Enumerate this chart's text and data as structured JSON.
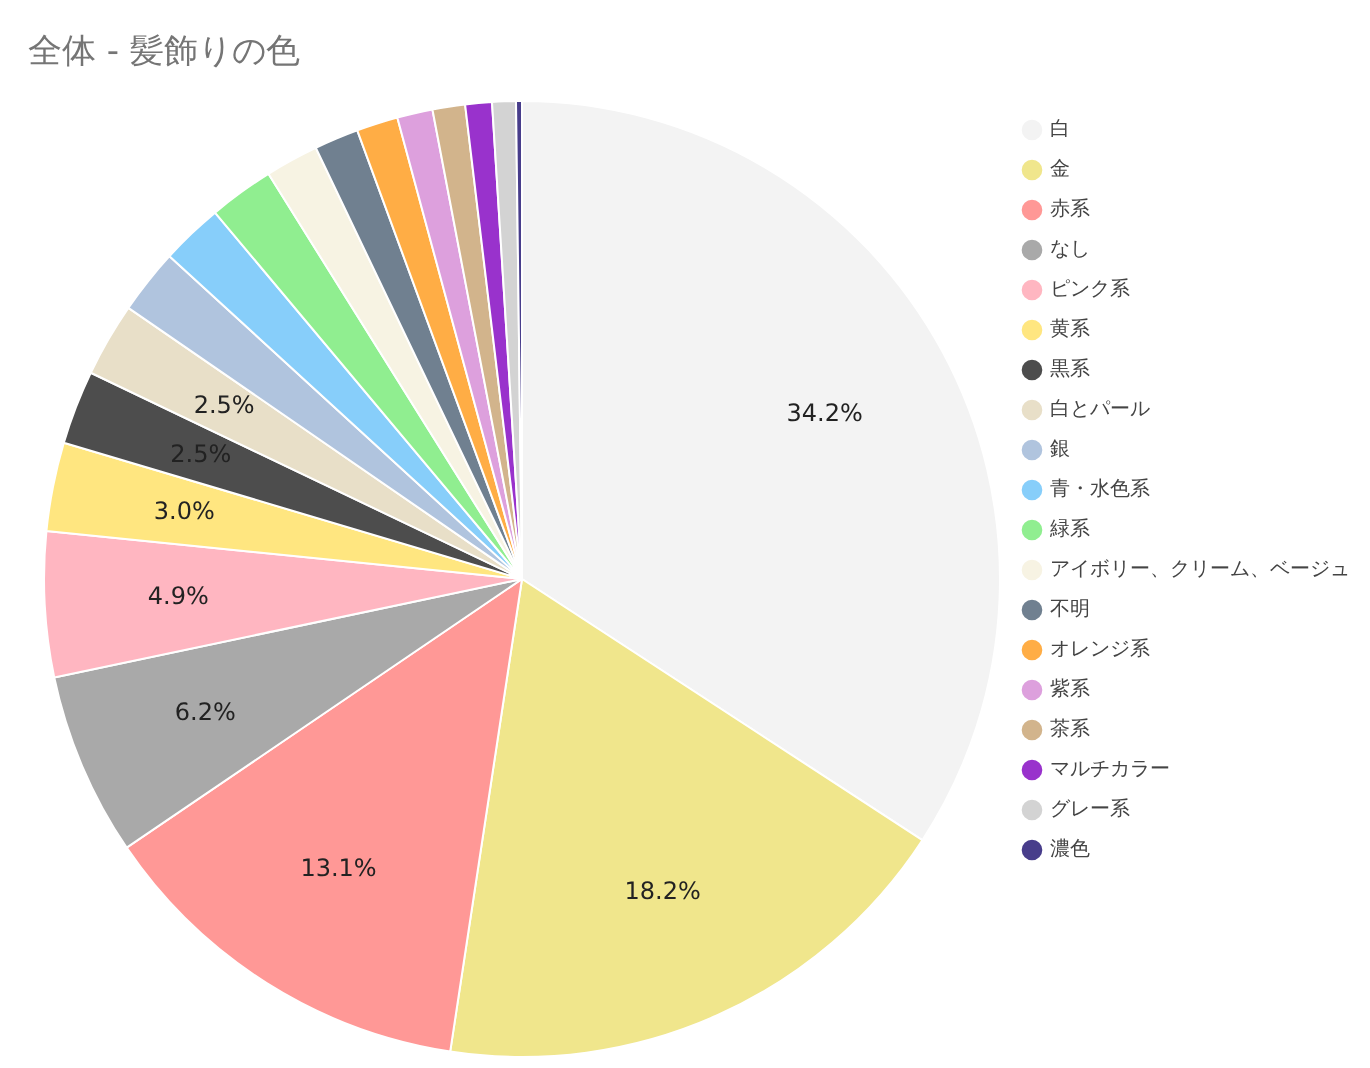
{
  "chart_data": {
    "type": "pie",
    "title": "全体 - 髪飾りの色",
    "categories": [
      "白",
      "金",
      "赤系",
      "なし",
      "ピンク系",
      "黄系",
      "黒系",
      "白とパール",
      "銀",
      "青・水色系",
      "緑系",
      "アイボリー、クリーム、ベージュ",
      "不明",
      "オレンジ系",
      "紫系",
      "茶系",
      "マルチカラー",
      "グレー系",
      "濃色"
    ],
    "values": [
      34.2,
      18.2,
      13.1,
      6.2,
      4.9,
      3.0,
      2.5,
      2.5,
      2.2,
      2.1,
      2.2,
      1.8,
      1.5,
      1.4,
      1.2,
      1.1,
      0.9,
      0.8,
      0.2
    ],
    "colors": [
      "#f3f3f3",
      "#f0e68c",
      "#ff9896",
      "#a9a9a9",
      "#ffb6c1",
      "#ffe680",
      "#4d4d4d",
      "#e8dfc8",
      "#b0c4de",
      "#87cefa",
      "#90ee90",
      "#f7f3e3",
      "#708090",
      "#ffad45",
      "#dda0dd",
      "#d2b48c",
      "#9932cc",
      "#d3d3d3",
      "#483d8b"
    ],
    "value_labels": [
      "34.2%",
      "18.2%",
      "13.1%",
      "6.2%",
      "4.9%",
      "3.0%",
      "2.5%",
      "2.5%",
      null,
      null,
      null,
      null,
      null,
      null,
      null,
      null,
      null,
      null,
      null
    ],
    "legend": "right"
  }
}
